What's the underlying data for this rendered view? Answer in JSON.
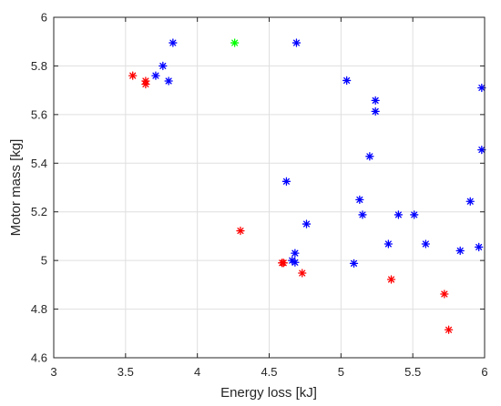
{
  "chart_data": {
    "type": "scatter",
    "title": "",
    "xlabel": "Energy loss [kJ]",
    "ylabel": "Motor mass [kg]",
    "xlim": [
      3,
      6
    ],
    "ylim": [
      4.6,
      6
    ],
    "x_ticks": [
      "3",
      "3.5",
      "4",
      "4.5",
      "5",
      "5.5",
      "6"
    ],
    "y_ticks": [
      "4.6",
      "4.8",
      "5",
      "5.2",
      "5.4",
      "5.6",
      "5.8",
      "6"
    ],
    "x_tick_values": [
      3,
      3.5,
      4,
      4.5,
      5,
      5.5,
      6
    ],
    "y_tick_values": [
      4.6,
      4.8,
      5,
      5.2,
      5.4,
      5.6,
      5.8,
      6
    ],
    "grid": true,
    "marker": "asterisk",
    "series": [
      {
        "color": "#0000ff",
        "points": [
          [
            3.83,
            5.895
          ],
          [
            3.76,
            5.8
          ],
          [
            3.71,
            5.76
          ],
          [
            3.8,
            5.738
          ],
          [
            4.69,
            5.895
          ],
          [
            5.04,
            5.74
          ],
          [
            5.24,
            5.658
          ],
          [
            5.24,
            5.613
          ],
          [
            5.2,
            5.428
          ],
          [
            4.62,
            5.325
          ],
          [
            5.98,
            5.71
          ],
          [
            5.98,
            5.455
          ],
          [
            5.13,
            5.25
          ],
          [
            4.76,
            5.15
          ],
          [
            5.15,
            5.188
          ],
          [
            5.4,
            5.188
          ],
          [
            5.51,
            5.188
          ],
          [
            5.9,
            5.243
          ],
          [
            4.68,
            5.03
          ],
          [
            4.66,
            5.0
          ],
          [
            4.68,
            4.992
          ],
          [
            5.09,
            4.988
          ],
          [
            5.33,
            5.068
          ],
          [
            5.59,
            5.068
          ],
          [
            5.83,
            5.04
          ],
          [
            5.96,
            5.055
          ]
        ]
      },
      {
        "color": "#ff0000",
        "points": [
          [
            3.55,
            5.76
          ],
          [
            3.64,
            5.738
          ],
          [
            3.64,
            5.725
          ],
          [
            4.3,
            5.122
          ],
          [
            4.59,
            4.99
          ],
          [
            4.6,
            4.99
          ],
          [
            4.73,
            4.948
          ],
          [
            5.35,
            4.922
          ],
          [
            5.72,
            4.862
          ],
          [
            5.75,
            4.715
          ]
        ]
      },
      {
        "color": "#00ff00",
        "points": [
          [
            4.26,
            5.895
          ]
        ]
      }
    ]
  }
}
